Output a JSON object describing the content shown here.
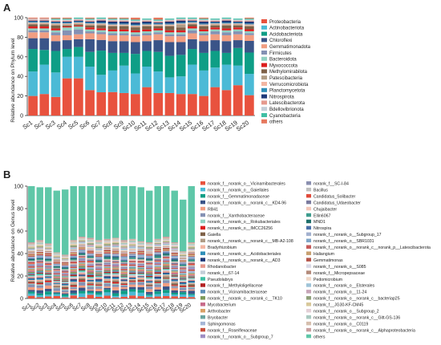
{
  "panel_a": {
    "letter": "A",
    "ylabel": "Relative abundance on Phylum level",
    "y_ticks": [
      "0",
      "20",
      "40",
      "60",
      "80",
      "100"
    ],
    "categories": [
      "Sc1",
      "Sc2",
      "Sc3",
      "Sc4",
      "Sc5",
      "Sc6",
      "Sc7",
      "Sc8",
      "Sc9",
      "Sc10",
      "Sc11",
      "Sc12",
      "Sc13",
      "Sc14",
      "Sc15",
      "Sc16",
      "Sc17",
      "Sc18",
      "Sc19",
      "Sc20"
    ],
    "legend": [
      {
        "name": "Proteobacteria",
        "color": "#e8523e"
      },
      {
        "name": "Actinobacteriota",
        "color": "#4bbad6"
      },
      {
        "name": "Acidobacteriota",
        "color": "#0e9e86"
      },
      {
        "name": "Chloroflexi",
        "color": "#3a5488"
      },
      {
        "name": "Gemmatimonadota",
        "color": "#f19e82"
      },
      {
        "name": "Firmicutes",
        "color": "#8491b4"
      },
      {
        "name": "Bacteroidota",
        "color": "#91d1c2"
      },
      {
        "name": "Myxococcota",
        "color": "#dc1e1e"
      },
      {
        "name": "Methylomirabilota",
        "color": "#7e6148"
      },
      {
        "name": "Patescibacteria",
        "color": "#b09c85"
      },
      {
        "name": "Verrucomicrobiota",
        "color": "#f3b6a2"
      },
      {
        "name": "Planctomycetota",
        "color": "#2f8fb8"
      },
      {
        "name": "Nitrospirota",
        "color": "#1f3a7a"
      },
      {
        "name": "Latescibacterota",
        "color": "#e59a8e"
      },
      {
        "name": "Bdellovibrionota",
        "color": "#c3ced8"
      },
      {
        "name": "Cyanobacteria",
        "color": "#3fbfa4"
      },
      {
        "name": "others",
        "color": "#e6785e"
      }
    ]
  },
  "panel_b": {
    "letter": "B",
    "ylabel": "Relative abundance on Genus level",
    "y_ticks": [
      "0",
      "20",
      "40",
      "60",
      "80",
      "100"
    ],
    "categories": [
      "Sc1",
      "Sc2",
      "Sc3",
      "Sc4",
      "Sc5",
      "Sc6",
      "Sc7",
      "Sc8",
      "Sc9",
      "Sc10",
      "Sc11",
      "Sc12",
      "Sc13",
      "Sc14",
      "Sc15",
      "Sc16",
      "Sc17",
      "Sc18",
      "Sc19",
      "Sc20"
    ],
    "legend_col1": [
      {
        "name": "norank_f__norank_o__Vicinamibacterales",
        "color": "#e8523e"
      },
      {
        "name": "norank_f__norank_o__Gaiellales",
        "color": "#4bbad6"
      },
      {
        "name": "norank_f__Gemmatimonadaceae",
        "color": "#0e9e86"
      },
      {
        "name": "norank_f__norank_o__norank_c__KD4-96",
        "color": "#3a5488"
      },
      {
        "name": "RB41",
        "color": "#f19e82"
      },
      {
        "name": "norank_f__Xanthobacteraceae",
        "color": "#8491b4"
      },
      {
        "name": "norank_f__norank_o__Rokubacteriales",
        "color": "#91d1c2"
      },
      {
        "name": "norank_f__norank_o__IMCC26256",
        "color": "#dc1e1e"
      },
      {
        "name": "Gaiella",
        "color": "#7e6148"
      },
      {
        "name": "norank_f__norank_o__norank_c__MB-A2-108",
        "color": "#b09c85"
      },
      {
        "name": "Bradyrhizobium",
        "color": "#f3b6a2"
      },
      {
        "name": "norank_f__norank_o__Acidobacteriales",
        "color": "#2f8fb8"
      },
      {
        "name": "norank_f__norank_o__norank_c__AD3",
        "color": "#1f3a7a"
      },
      {
        "name": "Rhodanobacter",
        "color": "#e59a8e"
      },
      {
        "name": "norank_f__67-14",
        "color": "#c3ced8"
      },
      {
        "name": "Pseudolabrys",
        "color": "#3fbfa4"
      },
      {
        "name": "norank_f__Methyloligellaceae",
        "color": "#b22222"
      },
      {
        "name": "norank_f__Vicinamibacteraceae",
        "color": "#5c8fb8"
      },
      {
        "name": "norank_f__norank_o__norank_c__TK10",
        "color": "#7d9a5a"
      },
      {
        "name": "Mycobacterium",
        "color": "#c86a8a"
      },
      {
        "name": "Arthrobacter",
        "color": "#d9a066"
      },
      {
        "name": "Bryobacter",
        "color": "#6aa5a0"
      },
      {
        "name": "Sphingomonas",
        "color": "#a5b6d6"
      },
      {
        "name": "norank_f__Roseiflexaceae",
        "color": "#c94f3d"
      },
      {
        "name": "norank_f__norank_o__Subgroup_7",
        "color": "#9f8fc4"
      }
    ],
    "legend_col2": [
      {
        "name": "norank_f__SC-I-84",
        "color": "#8a8fb0"
      },
      {
        "name": "Bacillus",
        "color": "#bfbfbf"
      },
      {
        "name": "Candidatus_Solibacter",
        "color": "#e04a3a"
      },
      {
        "name": "Candidatus_Udaeobacter",
        "color": "#7a7a9e"
      },
      {
        "name": "Chujaibacter",
        "color": "#f4c7b9"
      },
      {
        "name": "Ellin6067",
        "color": "#3d9c8e"
      },
      {
        "name": "MND1",
        "color": "#1d6e6a"
      },
      {
        "name": "Nitrospira",
        "color": "#4a6fa8"
      },
      {
        "name": "norank_f__norank_o__Subgroup_17",
        "color": "#a3b1cf"
      },
      {
        "name": "norank_f__norank_o__SBR1031",
        "color": "#7fa6c7"
      },
      {
        "name": "norank_f__norank_o__norank_c__norank_p__Latescibacterota",
        "color": "#c65a5a"
      },
      {
        "name": "Haliangium",
        "color": "#c8a070"
      },
      {
        "name": "Gemmatimonas",
        "color": "#b5554a"
      },
      {
        "name": "norank_f__norank_o__S085",
        "color": "#d8d8e6"
      },
      {
        "name": "norank_f__Micropepsaceae",
        "color": "#b38a7a"
      },
      {
        "name": "Pedomicrobium",
        "color": "#f0d8c8"
      },
      {
        "name": "norank_f__norank_o__Elsterales",
        "color": "#9ec3d8"
      },
      {
        "name": "norank_f__norank_o__11-24",
        "color": "#c7a6b8"
      },
      {
        "name": "norank_f__norank_o__norank_c__bacteriap25",
        "color": "#8fa07a"
      },
      {
        "name": "norank_f__JG30-KF-CM45",
        "color": "#d8c89a"
      },
      {
        "name": "norank_f__norank_o__Subgroup_2",
        "color": "#e3cfd6"
      },
      {
        "name": "norank_f__norank_o__norank_c__Gitt-GS-136",
        "color": "#a9c9c0"
      },
      {
        "name": "norank_f__norank_o__C0119",
        "color": "#d6bfae"
      },
      {
        "name": "norank_f__norank_o__norank_c__Alphaproteobacteria",
        "color": "#c9a0a0"
      },
      {
        "name": "others",
        "color": "#5fc7a8"
      }
    ]
  },
  "chart_data": [
    {
      "type": "bar",
      "stacked": true,
      "ylabel": "Relative abundance on Phylum level",
      "ylim": [
        0,
        100
      ],
      "categories": [
        "Sc1",
        "Sc2",
        "Sc3",
        "Sc4",
        "Sc5",
        "Sc6",
        "Sc7",
        "Sc8",
        "Sc9",
        "Sc10",
        "Sc11",
        "Sc12",
        "Sc13",
        "Sc14",
        "Sc15",
        "Sc16",
        "Sc17",
        "Sc18",
        "Sc19",
        "Sc20"
      ],
      "series": [
        {
          "name": "Proteobacteria",
          "values": [
            20,
            22,
            19,
            38,
            38,
            26,
            24,
            24,
            23,
            22,
            29,
            23,
            23,
            22,
            22,
            20,
            29,
            26,
            31,
            21
          ]
        },
        {
          "name": "Actinobacteriota",
          "values": [
            25,
            30,
            25,
            22,
            22,
            24,
            18,
            22,
            28,
            21,
            21,
            22,
            16,
            18,
            30,
            26,
            20,
            26,
            20,
            22
          ]
        },
        {
          "name": "Acidobacteriota",
          "values": [
            23,
            15,
            22,
            8,
            10,
            15,
            25,
            18,
            13,
            20,
            16,
            20,
            22,
            22,
            16,
            18,
            17,
            12,
            18,
            22
          ]
        },
        {
          "name": "Chloroflexi",
          "values": [
            11,
            12,
            10,
            9,
            8,
            13,
            11,
            12,
            12,
            12,
            10,
            12,
            14,
            13,
            10,
            12,
            11,
            12,
            8,
            12
          ]
        },
        {
          "name": "Gemmatimonadota",
          "values": [
            6,
            6,
            6,
            5,
            5,
            6,
            6,
            6,
            6,
            6,
            6,
            6,
            6,
            6,
            6,
            6,
            6,
            6,
            6,
            6
          ]
        },
        {
          "name": "Firmicutes",
          "values": [
            2,
            2,
            3,
            5,
            5,
            2,
            2,
            2,
            2,
            2,
            2,
            2,
            2,
            2,
            3,
            2,
            3,
            3,
            3,
            2
          ]
        },
        {
          "name": "Bacteroidota",
          "values": [
            2,
            2,
            2,
            3,
            3,
            2,
            2,
            2,
            2,
            2,
            2,
            2,
            2,
            2,
            2,
            2,
            2,
            2,
            2,
            2
          ]
        },
        {
          "name": "Myxococcota",
          "values": [
            2,
            2,
            2,
            1,
            1,
            2,
            2,
            2,
            2,
            2,
            2,
            2,
            2,
            2,
            2,
            2,
            2,
            2,
            2,
            2
          ]
        },
        {
          "name": "Methylomirabilota",
          "values": [
            2,
            2,
            3,
            1,
            1,
            2,
            3,
            3,
            3,
            3,
            3,
            2,
            4,
            3,
            2,
            3,
            2,
            3,
            2,
            3
          ]
        },
        {
          "name": "Patescibacteria",
          "values": [
            1,
            1,
            1,
            1,
            1,
            1,
            1,
            1,
            1,
            1,
            1,
            1,
            1,
            3,
            1,
            1,
            1,
            1,
            1,
            1
          ]
        },
        {
          "name": "Verrucomicrobiota",
          "values": [
            1,
            1,
            1,
            1,
            1,
            1,
            1,
            1,
            1,
            1,
            1,
            1,
            1,
            1,
            1,
            1,
            1,
            1,
            1,
            1
          ]
        },
        {
          "name": "Planctomycetota",
          "values": [
            1,
            1,
            1,
            1,
            1,
            1,
            1,
            1,
            1,
            1,
            1,
            1,
            1,
            1,
            1,
            1,
            1,
            1,
            1,
            1
          ]
        },
        {
          "name": "Nitrospirota",
          "values": [
            1,
            1,
            1,
            1,
            1,
            1,
            2,
            2,
            2,
            2,
            2,
            1,
            2,
            2,
            1,
            2,
            1,
            2,
            1,
            2
          ]
        },
        {
          "name": "Latescibacterota",
          "values": [
            1,
            1,
            1,
            1,
            1,
            1,
            1,
            1,
            1,
            1,
            1,
            1,
            1,
            1,
            1,
            1,
            1,
            1,
            1,
            1
          ]
        },
        {
          "name": "Bdellovibrionota",
          "values": [
            1,
            1,
            1,
            1,
            1,
            1,
            1,
            1,
            1,
            1,
            1,
            1,
            1,
            1,
            1,
            1,
            1,
            1,
            1,
            1
          ]
        },
        {
          "name": "Cyanobacteria",
          "values": [
            0,
            0,
            1,
            1,
            1,
            1,
            1,
            1,
            1,
            1,
            1,
            1,
            1,
            1,
            1,
            1,
            1,
            1,
            1,
            1
          ]
        },
        {
          "name": "others",
          "values": [
            1,
            1,
            1,
            1,
            0,
            1,
            -2,
            1,
            1,
            2,
            0,
            2,
            0,
            0,
            0,
            1,
            0,
            0,
            0,
            1
          ]
        }
      ]
    },
    {
      "type": "bar",
      "stacked": true,
      "ylabel": "Relative abundance on Genus level",
      "ylim": [
        0,
        100
      ],
      "categories": [
        "Sc1",
        "Sc2",
        "Sc3",
        "Sc4",
        "Sc5",
        "Sc6",
        "Sc7",
        "Sc8",
        "Sc9",
        "Sc10",
        "Sc11",
        "Sc12",
        "Sc13",
        "Sc14",
        "Sc15",
        "Sc16",
        "Sc17",
        "Sc18",
        "Sc19",
        "Sc20"
      ],
      "totals": [
        100,
        99,
        99,
        96,
        97,
        100,
        100,
        100,
        100,
        100,
        100,
        100,
        100,
        99,
        96,
        100,
        100,
        96,
        88,
        100
      ],
      "others": [
        50,
        47,
        50,
        55,
        58,
        48,
        45,
        46,
        48,
        47,
        46,
        48,
        47,
        48,
        46,
        47,
        45,
        46,
        46,
        50
      ]
    }
  ]
}
